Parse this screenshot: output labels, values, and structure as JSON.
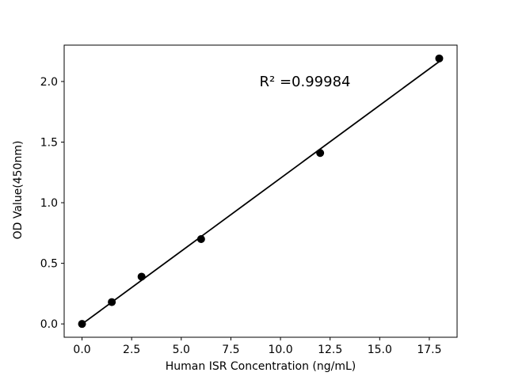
{
  "chart_data": {
    "type": "scatter",
    "title": "",
    "xlabel": "Human ISR Concentration (ng/mL)",
    "ylabel": "OD Value(450nm)",
    "x": [
      0,
      1.5,
      3,
      6,
      12,
      18
    ],
    "y": [
      0.0,
      0.18,
      0.39,
      0.7,
      1.41,
      2.19
    ],
    "fit": {
      "type": "linear",
      "slope": 0.1203,
      "intercept": -0.001,
      "x_start": 0,
      "x_end": 18
    },
    "annotation": "R² =0.99984",
    "r_squared": 0.99984,
    "xlim": [
      -0.9,
      18.9
    ],
    "ylim": [
      -0.11,
      2.3
    ],
    "x_ticks": [
      0.0,
      2.5,
      5.0,
      7.5,
      10.0,
      12.5,
      15.0,
      17.5
    ],
    "x_tick_labels": [
      "0.0",
      "2.5",
      "5.0",
      "7.5",
      "10.0",
      "12.5",
      "15.0",
      "17.5"
    ],
    "y_ticks": [
      0.0,
      0.5,
      1.0,
      1.5,
      2.0
    ],
    "y_tick_labels": [
      "0.0",
      "0.5",
      "1.0",
      "1.5",
      "2.0"
    ],
    "grid": false,
    "legend": "none",
    "marker_color": "#000000",
    "marker_radius": 5,
    "line_color": "#000000",
    "line_width": 1.8,
    "axis_color": "#000000",
    "background": "#ffffff"
  }
}
